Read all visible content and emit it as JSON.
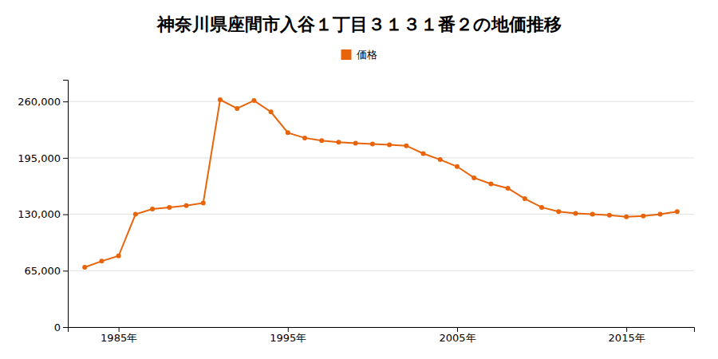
{
  "chart_data": {
    "type": "line",
    "title": "神奈川県座間市入谷１丁目３１３１番２の地価推移",
    "x": [
      1983,
      1984,
      1985,
      1986,
      1987,
      1988,
      1989,
      1990,
      1991,
      1992,
      1993,
      1994,
      1995,
      1996,
      1997,
      1998,
      1999,
      2000,
      2001,
      2002,
      2003,
      2004,
      2005,
      2006,
      2007,
      2008,
      2009,
      2010,
      2011,
      2012,
      2013,
      2014,
      2015,
      2016,
      2017,
      2018
    ],
    "series": [
      {
        "name": "価格",
        "color": "#e8640a",
        "marker": "circle",
        "values": [
          69000,
          76000,
          82000,
          130000,
          136000,
          138000,
          140000,
          143000,
          262000,
          252000,
          261000,
          248000,
          224000,
          218000,
          215000,
          213000,
          212000,
          211000,
          210000,
          209000,
          200000,
          193000,
          185000,
          172000,
          165000,
          160000,
          148000,
          138000,
          133000,
          131000,
          130000,
          129000,
          127000,
          128000,
          130000,
          133000
        ]
      }
    ],
    "xlim": [
      1982,
      2019
    ],
    "xticks": [
      {
        "value": 1985,
        "label": "1985年"
      },
      {
        "value": 1995,
        "label": "1995年"
      },
      {
        "value": 2005,
        "label": "2005年"
      },
      {
        "value": 2015,
        "label": "2015年"
      }
    ],
    "ylim": [
      0,
      285000
    ],
    "yticks": [
      0,
      {
        "value": 65000,
        "label": "65,000"
      },
      {
        "value": 130000,
        "label": "130,000"
      },
      {
        "value": 195000,
        "label": "195,000"
      },
      {
        "value": 260000,
        "label": "260,000"
      }
    ],
    "grid": true,
    "legend": "top"
  }
}
